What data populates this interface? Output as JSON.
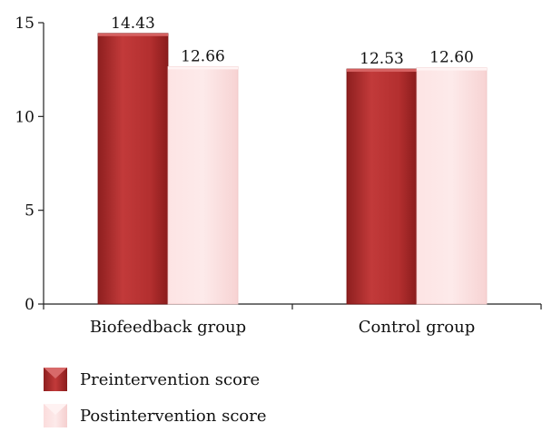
{
  "chart_data": {
    "type": "bar",
    "title": "",
    "xlabel": "",
    "ylabel": "",
    "ylim": [
      0,
      15
    ],
    "yticks": [
      0,
      5,
      10,
      15
    ],
    "grid": false,
    "categories": [
      "Biofeedback group",
      "Control group"
    ],
    "series": [
      {
        "name": "Preintervention score",
        "values": [
          14.43,
          12.53
        ],
        "labels": [
          "14.43",
          "12.53"
        ]
      },
      {
        "name": "Postintervention score",
        "values": [
          12.66,
          12.6
        ],
        "labels": [
          "12.66",
          "12.60"
        ]
      }
    ],
    "legend_position": "bottom-left"
  },
  "colors": {
    "series0": "#b83232",
    "series0_dark": "#8e1f1f",
    "series0_light": "#d45a5a",
    "series1": "#fde1e1",
    "series1_dark": "#f3c6c6",
    "axis": "#222222"
  }
}
